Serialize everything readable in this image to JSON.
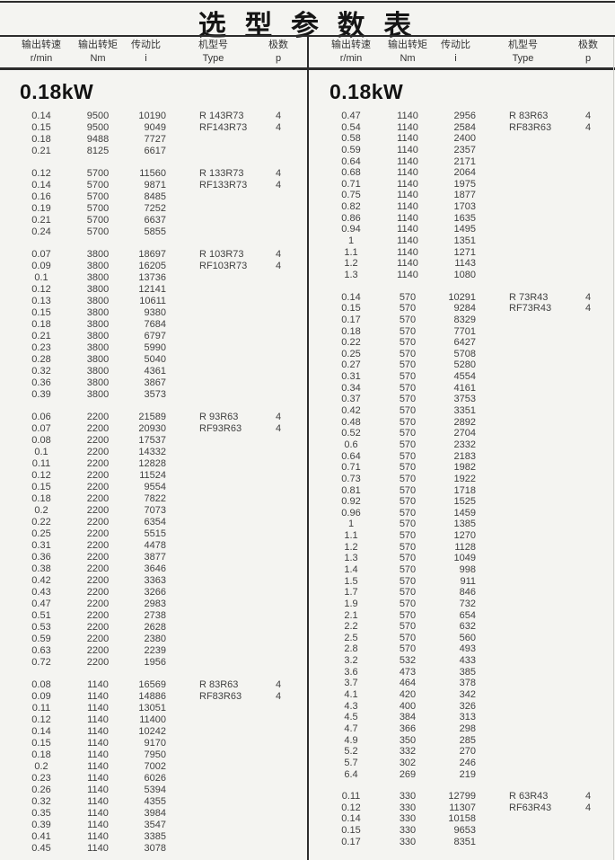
{
  "title": "选 型 参 数 表",
  "columns": [
    {
      "label": "输出转速",
      "sub": "r/min"
    },
    {
      "label": "输出转矩",
      "sub": "Nm"
    },
    {
      "label": "传动比",
      "sub": "i"
    },
    {
      "label": "机型号",
      "sub": "Type"
    },
    {
      "label": "极数",
      "sub": "p"
    }
  ],
  "left": {
    "section": "0.18kW",
    "groups": [
      [
        [
          "0.14",
          "9500",
          "10190",
          "R 143R73",
          "4"
        ],
        [
          "0.15",
          "9500",
          "9049",
          "RF143R73",
          "4"
        ],
        [
          "0.18",
          "9488",
          "7727",
          "",
          ""
        ],
        [
          "0.21",
          "8125",
          "6617",
          "",
          ""
        ]
      ],
      [
        [
          "0.12",
          "5700",
          "11560",
          "R 133R73",
          "4"
        ],
        [
          "0.14",
          "5700",
          "9871",
          "RF133R73",
          "4"
        ],
        [
          "0.16",
          "5700",
          "8485",
          "",
          ""
        ],
        [
          "0.19",
          "5700",
          "7252",
          "",
          ""
        ],
        [
          "0.21",
          "5700",
          "6637",
          "",
          ""
        ],
        [
          "0.24",
          "5700",
          "5855",
          "",
          ""
        ]
      ],
      [
        [
          "0.07",
          "3800",
          "18697",
          "R 103R73",
          "4"
        ],
        [
          "0.09",
          "3800",
          "16205",
          "RF103R73",
          "4"
        ],
        [
          "0.1",
          "3800",
          "13736",
          "",
          ""
        ],
        [
          "0.12",
          "3800",
          "12141",
          "",
          ""
        ],
        [
          "0.13",
          "3800",
          "10611",
          "",
          ""
        ],
        [
          "0.15",
          "3800",
          "9380",
          "",
          ""
        ],
        [
          "0.18",
          "3800",
          "7684",
          "",
          ""
        ],
        [
          "0.21",
          "3800",
          "6797",
          "",
          ""
        ],
        [
          "0.23",
          "3800",
          "5990",
          "",
          ""
        ],
        [
          "0.28",
          "3800",
          "5040",
          "",
          ""
        ],
        [
          "0.32",
          "3800",
          "4361",
          "",
          ""
        ],
        [
          "0.36",
          "3800",
          "3867",
          "",
          ""
        ],
        [
          "0.39",
          "3800",
          "3573",
          "",
          ""
        ]
      ],
      [
        [
          "0.06",
          "2200",
          "21589",
          "R 93R63",
          "4"
        ],
        [
          "0.07",
          "2200",
          "20930",
          "RF93R63",
          "4"
        ],
        [
          "0.08",
          "2200",
          "17537",
          "",
          ""
        ],
        [
          "0.1",
          "2200",
          "14332",
          "",
          ""
        ],
        [
          "0.11",
          "2200",
          "12828",
          "",
          ""
        ],
        [
          "0.12",
          "2200",
          "11524",
          "",
          ""
        ],
        [
          "0.15",
          "2200",
          "9554",
          "",
          ""
        ],
        [
          "0.18",
          "2200",
          "7822",
          "",
          ""
        ],
        [
          "0.2",
          "2200",
          "7073",
          "",
          ""
        ],
        [
          "0.22",
          "2200",
          "6354",
          "",
          ""
        ],
        [
          "0.25",
          "2200",
          "5515",
          "",
          ""
        ],
        [
          "0.31",
          "2200",
          "4478",
          "",
          ""
        ],
        [
          "0.36",
          "2200",
          "3877",
          "",
          ""
        ],
        [
          "0.38",
          "2200",
          "3646",
          "",
          ""
        ],
        [
          "0.42",
          "2200",
          "3363",
          "",
          ""
        ],
        [
          "0.43",
          "2200",
          "3266",
          "",
          ""
        ],
        [
          "0.47",
          "2200",
          "2983",
          "",
          ""
        ],
        [
          "0.51",
          "2200",
          "2738",
          "",
          ""
        ],
        [
          "0.53",
          "2200",
          "2628",
          "",
          ""
        ],
        [
          "0.59",
          "2200",
          "2380",
          "",
          ""
        ],
        [
          "0.63",
          "2200",
          "2239",
          "",
          ""
        ],
        [
          "0.72",
          "2200",
          "1956",
          "",
          ""
        ]
      ],
      [
        [
          "0.08",
          "1140",
          "16569",
          "R 83R63",
          "4"
        ],
        [
          "0.09",
          "1140",
          "14886",
          "RF83R63",
          "4"
        ],
        [
          "0.11",
          "1140",
          "13051",
          "",
          ""
        ],
        [
          "0.12",
          "1140",
          "11400",
          "",
          ""
        ],
        [
          "0.14",
          "1140",
          "10242",
          "",
          ""
        ],
        [
          "0.15",
          "1140",
          "9170",
          "",
          ""
        ],
        [
          "0.18",
          "1140",
          "7950",
          "",
          ""
        ],
        [
          "0.2",
          "1140",
          "7002",
          "",
          ""
        ],
        [
          "0.23",
          "1140",
          "6026",
          "",
          ""
        ],
        [
          "0.26",
          "1140",
          "5394",
          "",
          ""
        ],
        [
          "0.32",
          "1140",
          "4355",
          "",
          ""
        ],
        [
          "0.35",
          "1140",
          "3984",
          "",
          ""
        ],
        [
          "0.39",
          "1140",
          "3547",
          "",
          ""
        ],
        [
          "0.41",
          "1140",
          "3385",
          "",
          ""
        ],
        [
          "0.45",
          "1140",
          "3078",
          "",
          ""
        ]
      ]
    ]
  },
  "right": {
    "section": "0.18kW",
    "groups": [
      [
        [
          "0.47",
          "1140",
          "2956",
          "R 83R63",
          "4"
        ],
        [
          "0.54",
          "1140",
          "2584",
          "RF83R63",
          "4"
        ],
        [
          "0.58",
          "1140",
          "2400",
          "",
          ""
        ],
        [
          "0.59",
          "1140",
          "2357",
          "",
          ""
        ],
        [
          "0.64",
          "1140",
          "2171",
          "",
          ""
        ],
        [
          "0.68",
          "1140",
          "2064",
          "",
          ""
        ],
        [
          "0.71",
          "1140",
          "1975",
          "",
          ""
        ],
        [
          "0.75",
          "1140",
          "1877",
          "",
          ""
        ],
        [
          "0.82",
          "1140",
          "1703",
          "",
          ""
        ],
        [
          "0.86",
          "1140",
          "1635",
          "",
          ""
        ],
        [
          "0.94",
          "1140",
          "1495",
          "",
          ""
        ],
        [
          "1",
          "1140",
          "1351",
          "",
          ""
        ],
        [
          "1.1",
          "1140",
          "1271",
          "",
          ""
        ],
        [
          "1.2",
          "1140",
          "1143",
          "",
          ""
        ],
        [
          "1.3",
          "1140",
          "1080",
          "",
          ""
        ]
      ],
      [
        [
          "0.14",
          "570",
          "10291",
          "R 73R43",
          "4"
        ],
        [
          "0.15",
          "570",
          "9284",
          "RF73R43",
          "4"
        ],
        [
          "0.17",
          "570",
          "8329",
          "",
          ""
        ],
        [
          "0.18",
          "570",
          "7701",
          "",
          ""
        ],
        [
          "0.22",
          "570",
          "6427",
          "",
          ""
        ],
        [
          "0.25",
          "570",
          "5708",
          "",
          ""
        ],
        [
          "0.27",
          "570",
          "5280",
          "",
          ""
        ],
        [
          "0.31",
          "570",
          "4554",
          "",
          ""
        ],
        [
          "0.34",
          "570",
          "4161",
          "",
          ""
        ],
        [
          "0.37",
          "570",
          "3753",
          "",
          ""
        ],
        [
          "0.42",
          "570",
          "3351",
          "",
          ""
        ],
        [
          "0.48",
          "570",
          "2892",
          "",
          ""
        ],
        [
          "0.52",
          "570",
          "2704",
          "",
          ""
        ],
        [
          "0.6",
          "570",
          "2332",
          "",
          ""
        ],
        [
          "0.64",
          "570",
          "2183",
          "",
          ""
        ],
        [
          "0.71",
          "570",
          "1982",
          "",
          ""
        ],
        [
          "0.73",
          "570",
          "1922",
          "",
          ""
        ],
        [
          "0.81",
          "570",
          "1718",
          "",
          ""
        ],
        [
          "0.92",
          "570",
          "1525",
          "",
          ""
        ],
        [
          "0.96",
          "570",
          "1459",
          "",
          ""
        ],
        [
          "1",
          "570",
          "1385",
          "",
          ""
        ],
        [
          "1.1",
          "570",
          "1270",
          "",
          ""
        ],
        [
          "1.2",
          "570",
          "1128",
          "",
          ""
        ],
        [
          "1.3",
          "570",
          "1049",
          "",
          ""
        ],
        [
          "1.4",
          "570",
          "998",
          "",
          ""
        ],
        [
          "1.5",
          "570",
          "911",
          "",
          ""
        ],
        [
          "1.7",
          "570",
          "846",
          "",
          ""
        ],
        [
          "1.9",
          "570",
          "732",
          "",
          ""
        ],
        [
          "2.1",
          "570",
          "654",
          "",
          ""
        ],
        [
          "2.2",
          "570",
          "632",
          "",
          ""
        ],
        [
          "2.5",
          "570",
          "560",
          "",
          ""
        ],
        [
          "2.8",
          "570",
          "493",
          "",
          ""
        ],
        [
          "3.2",
          "532",
          "433",
          "",
          ""
        ],
        [
          "3.6",
          "473",
          "385",
          "",
          ""
        ],
        [
          "3.7",
          "464",
          "378",
          "",
          ""
        ],
        [
          "4.1",
          "420",
          "342",
          "",
          ""
        ],
        [
          "4.3",
          "400",
          "326",
          "",
          ""
        ],
        [
          "4.5",
          "384",
          "313",
          "",
          ""
        ],
        [
          "4.7",
          "366",
          "298",
          "",
          ""
        ],
        [
          "4.9",
          "350",
          "285",
          "",
          ""
        ],
        [
          "5.2",
          "332",
          "270",
          "",
          ""
        ],
        [
          "5.7",
          "302",
          "246",
          "",
          ""
        ],
        [
          "6.4",
          "269",
          "219",
          "",
          ""
        ]
      ],
      [
        [
          "0.11",
          "330",
          "12799",
          "R 63R43",
          "4"
        ],
        [
          "0.12",
          "330",
          "11307",
          "RF63R43",
          "4"
        ],
        [
          "0.14",
          "330",
          "10158",
          "",
          ""
        ],
        [
          "0.15",
          "330",
          "9653",
          "",
          ""
        ],
        [
          "0.17",
          "330",
          "8351",
          "",
          ""
        ]
      ]
    ]
  }
}
